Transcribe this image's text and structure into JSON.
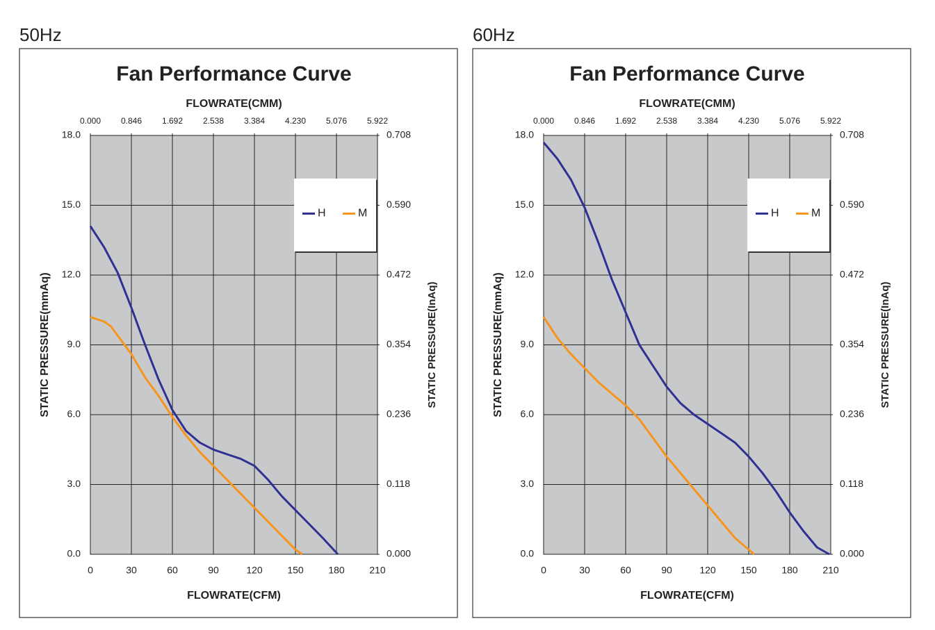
{
  "chart_data": [
    {
      "type": "line",
      "label": "50Hz",
      "title": "Fan Performance Curve",
      "xlabel": "FLOWRATE(CFM)",
      "x2label": "FLOWRATE(CMM)",
      "ylabel": "STATIC PRESSURE(mmAq)",
      "y2label": "STATIC PRESSURE(InAq)",
      "xlim": [
        0,
        210
      ],
      "xticks": [
        0,
        30,
        60,
        90,
        120,
        150,
        180,
        210
      ],
      "x2lim": [
        0,
        5.922
      ],
      "x2ticks": [
        {
          "value": 0,
          "label": "0.000"
        },
        {
          "value": 0.846,
          "label": "0.846"
        },
        {
          "value": 1.692,
          "label": "1.692"
        },
        {
          "value": 2.538,
          "label": "2.538"
        },
        {
          "value": 3.384,
          "label": "3.384"
        },
        {
          "value": 4.23,
          "label": "4.230"
        },
        {
          "value": 5.076,
          "label": "5.076"
        },
        {
          "value": 5.922,
          "label": "5.922"
        }
      ],
      "ylim": [
        0,
        18
      ],
      "yticks": [
        {
          "value": 0,
          "label": "0.0"
        },
        {
          "value": 3,
          "label": "3.0"
        },
        {
          "value": 6,
          "label": "6.0"
        },
        {
          "value": 9,
          "label": "9.0"
        },
        {
          "value": 12,
          "label": "12.0"
        },
        {
          "value": 15,
          "label": "15.0"
        },
        {
          "value": 18,
          "label": "18.0"
        }
      ],
      "y2lim": [
        0,
        0.708
      ],
      "y2ticks": [
        {
          "value": 0,
          "label": "0.000"
        },
        {
          "value": 0.118,
          "label": "0.118"
        },
        {
          "value": 0.236,
          "label": "0.236"
        },
        {
          "value": 0.354,
          "label": "0.354"
        },
        {
          "value": 0.472,
          "label": "0.472"
        },
        {
          "value": 0.59,
          "label": "0.590"
        },
        {
          "value": 0.708,
          "label": "0.708"
        }
      ],
      "grid": true,
      "legend": "upper right",
      "series": [
        {
          "name": "H",
          "color": "#2e3192",
          "x": [
            0,
            10,
            20,
            30,
            40,
            50,
            60,
            70,
            80,
            90,
            100,
            110,
            120,
            130,
            140,
            150,
            160,
            170,
            181
          ],
          "values": [
            14.1,
            13.2,
            12.1,
            10.6,
            9.0,
            7.5,
            6.2,
            5.3,
            4.8,
            4.5,
            4.3,
            4.1,
            3.8,
            3.2,
            2.5,
            1.9,
            1.3,
            0.7,
            0
          ]
        },
        {
          "name": "M",
          "color": "#f7941d",
          "x": [
            0,
            10,
            15,
            20,
            30,
            40,
            50,
            60,
            70,
            80,
            90,
            100,
            110,
            120,
            130,
            140,
            150,
            155
          ],
          "values": [
            10.2,
            10.0,
            9.8,
            9.4,
            8.6,
            7.6,
            6.8,
            5.9,
            5.1,
            4.4,
            3.8,
            3.2,
            2.6,
            2.0,
            1.4,
            0.8,
            0.2,
            0
          ]
        }
      ]
    },
    {
      "type": "line",
      "label": "60Hz",
      "title": "Fan Performance Curve",
      "xlabel": "FLOWRATE(CFM)",
      "x2label": "FLOWRATE(CMM)",
      "ylabel": "STATIC PRESSURE(mmAq)",
      "y2label": "STATIC PRESSURE(InAq)",
      "xlim": [
        0,
        210
      ],
      "xticks": [
        0,
        30,
        60,
        90,
        120,
        150,
        180,
        210
      ],
      "x2lim": [
        0,
        5.922
      ],
      "x2ticks": [
        {
          "value": 0,
          "label": "0.000"
        },
        {
          "value": 0.846,
          "label": "0.846"
        },
        {
          "value": 1.692,
          "label": "1.692"
        },
        {
          "value": 2.538,
          "label": "2.538"
        },
        {
          "value": 3.384,
          "label": "3.384"
        },
        {
          "value": 4.23,
          "label": "4.230"
        },
        {
          "value": 5.076,
          "label": "5.076"
        },
        {
          "value": 5.922,
          "label": "5.922"
        }
      ],
      "ylim": [
        0,
        18
      ],
      "yticks": [
        {
          "value": 0,
          "label": "0.0"
        },
        {
          "value": 3,
          "label": "3.0"
        },
        {
          "value": 6,
          "label": "6.0"
        },
        {
          "value": 9,
          "label": "9.0"
        },
        {
          "value": 12,
          "label": "12.0"
        },
        {
          "value": 15,
          "label": "15.0"
        },
        {
          "value": 18,
          "label": "18.0"
        }
      ],
      "y2lim": [
        0,
        0.708
      ],
      "y2ticks": [
        {
          "value": 0,
          "label": "0.000"
        },
        {
          "value": 0.118,
          "label": "0.118"
        },
        {
          "value": 0.236,
          "label": "0.236"
        },
        {
          "value": 0.354,
          "label": "0.354"
        },
        {
          "value": 0.472,
          "label": "0.472"
        },
        {
          "value": 0.59,
          "label": "0.590"
        },
        {
          "value": 0.708,
          "label": "0.708"
        }
      ],
      "grid": true,
      "legend": "upper right",
      "series": [
        {
          "name": "H",
          "color": "#2e3192",
          "x": [
            0,
            10,
            20,
            30,
            40,
            50,
            60,
            70,
            80,
            90,
            100,
            110,
            120,
            130,
            140,
            150,
            160,
            170,
            180,
            190,
            200,
            209
          ],
          "values": [
            17.7,
            17.0,
            16.1,
            14.9,
            13.4,
            11.8,
            10.4,
            9.0,
            8.1,
            7.2,
            6.5,
            6.0,
            5.6,
            5.2,
            4.8,
            4.2,
            3.5,
            2.7,
            1.8,
            1.0,
            0.3,
            0
          ]
        },
        {
          "name": "M",
          "color": "#f7941d",
          "x": [
            0,
            10,
            20,
            30,
            40,
            50,
            60,
            70,
            80,
            90,
            100,
            110,
            120,
            130,
            140,
            154
          ],
          "values": [
            10.2,
            9.3,
            8.6,
            8.0,
            7.4,
            6.9,
            6.4,
            5.8,
            5.0,
            4.2,
            3.5,
            2.8,
            2.1,
            1.4,
            0.7,
            0
          ]
        }
      ]
    }
  ]
}
